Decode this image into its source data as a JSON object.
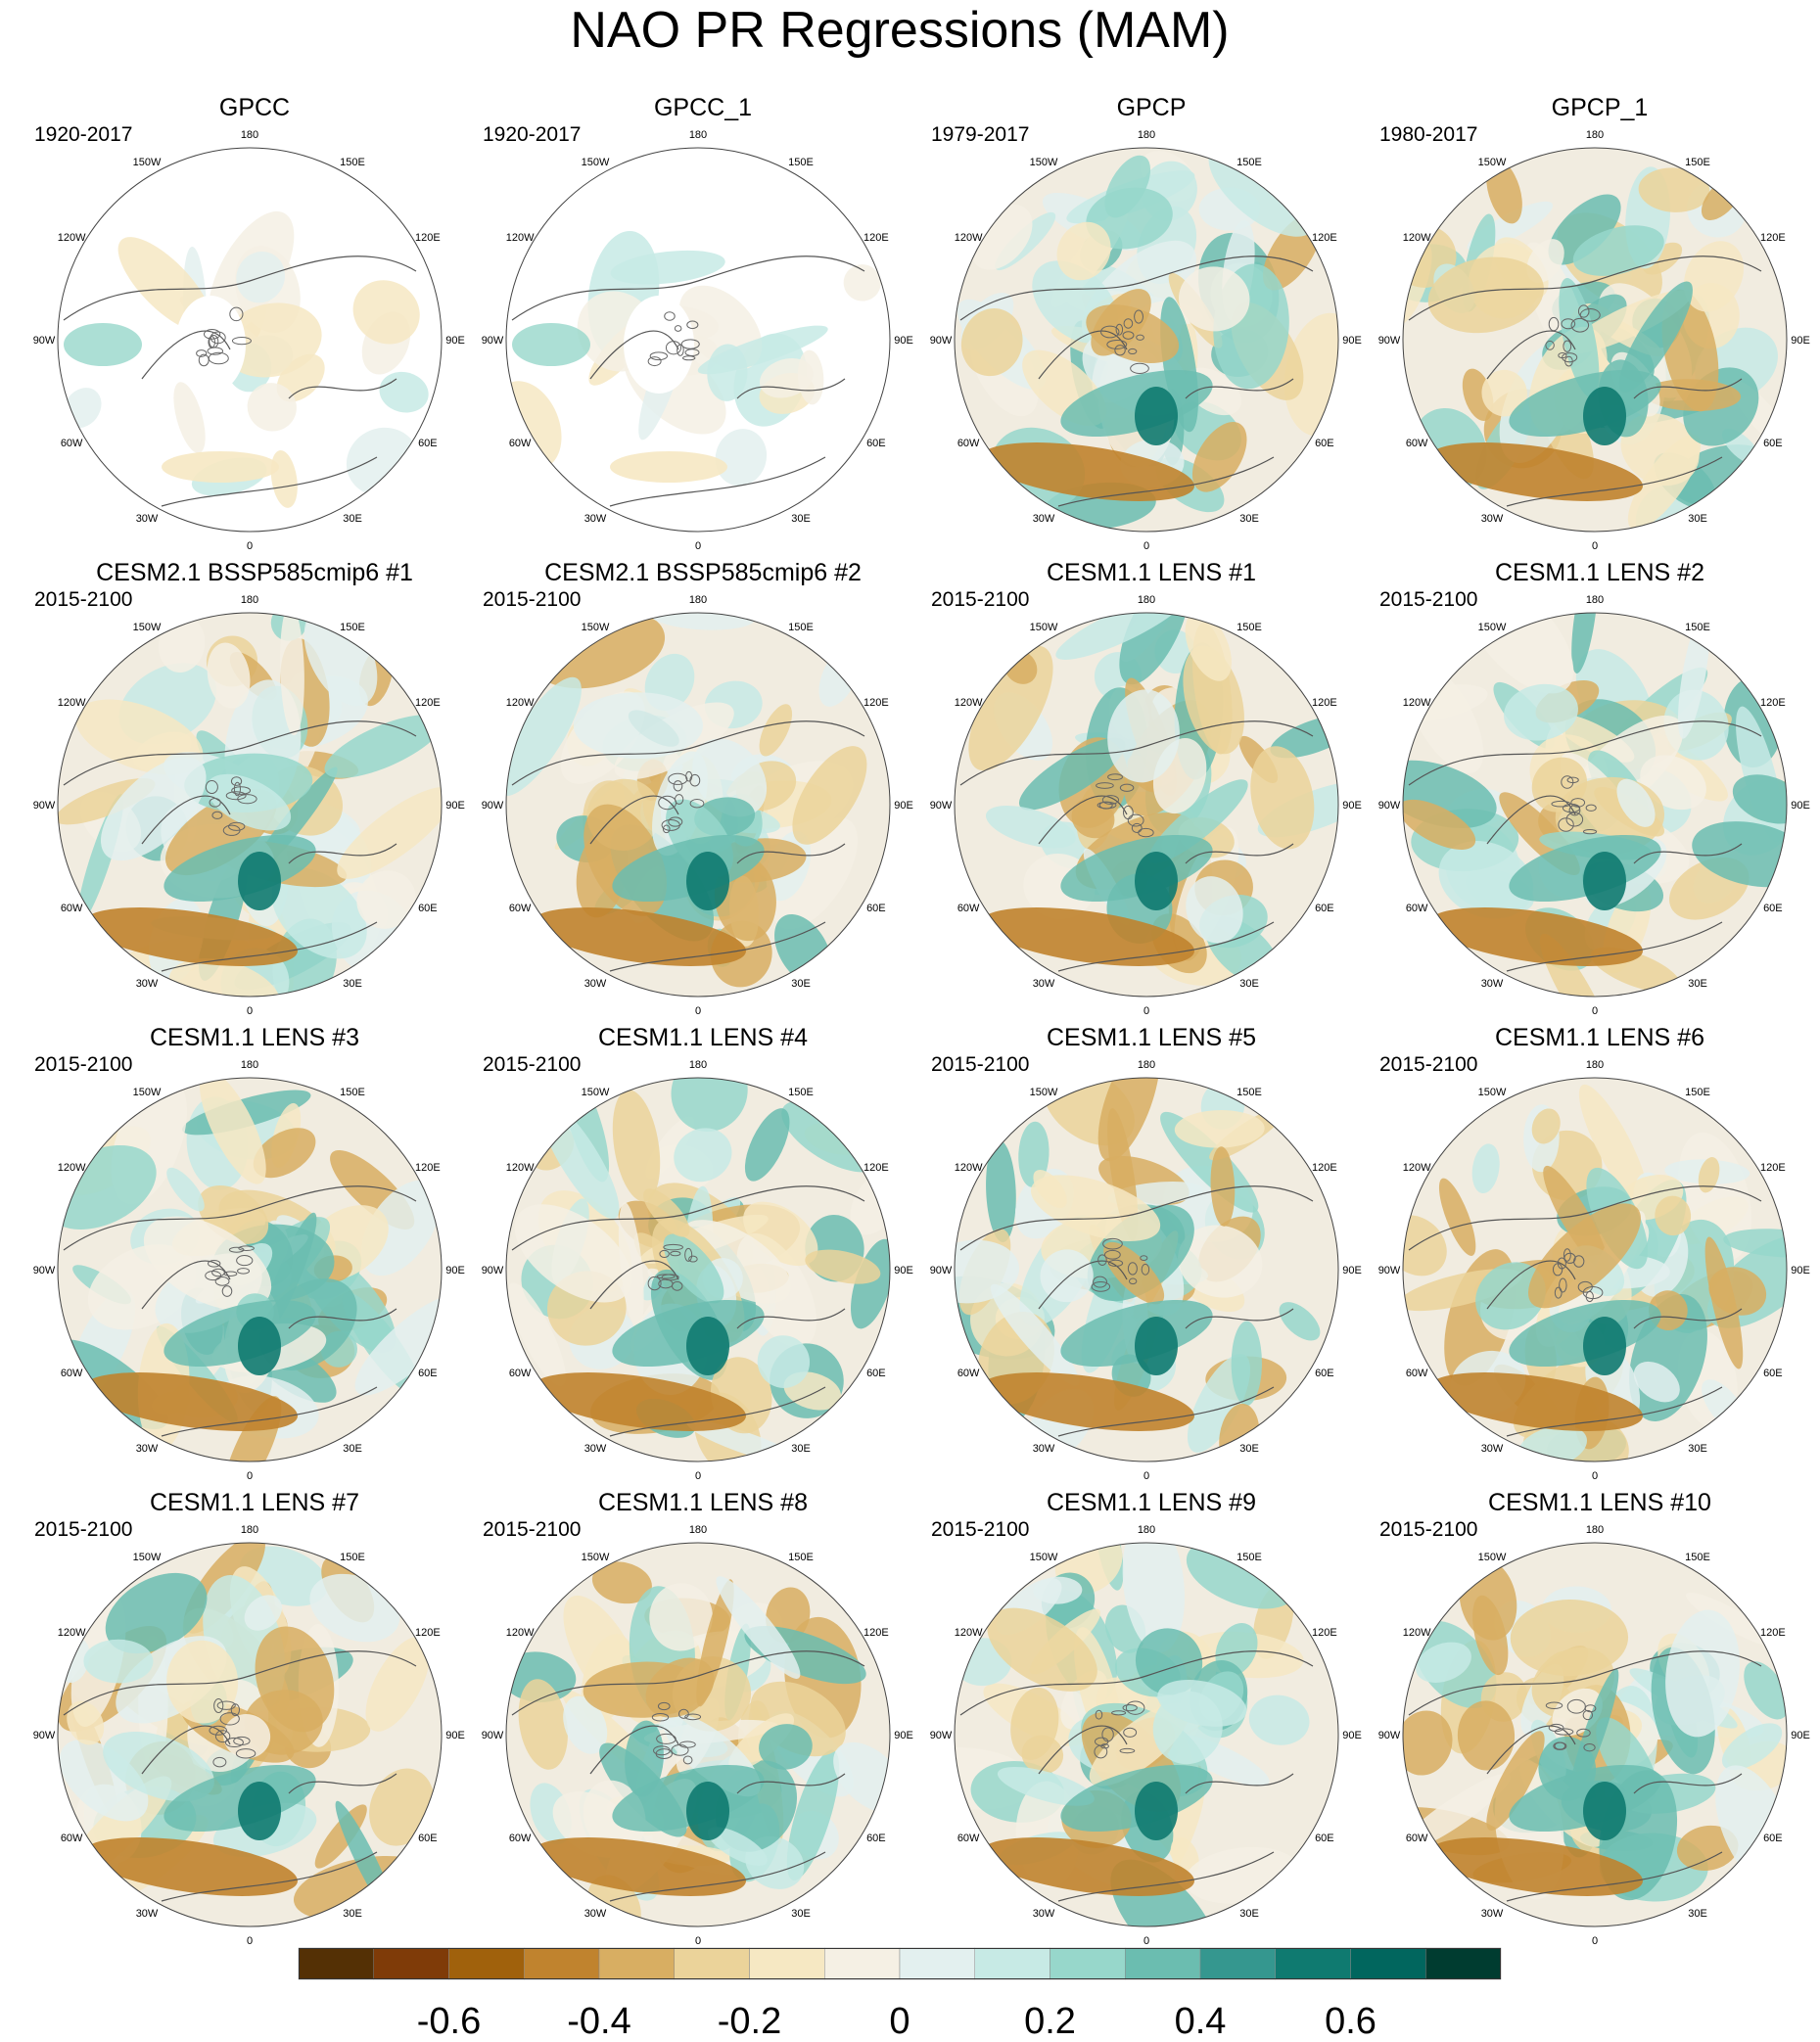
{
  "title": "NAO PR Regressions (MAM)",
  "lon_labels": [
    "180",
    "150E",
    "120E",
    "90E",
    "60E",
    "30E",
    "0",
    "30W",
    "60W",
    "90W",
    "120W",
    "150W"
  ],
  "panels": [
    {
      "title": "GPCC",
      "period": "1920-2017",
      "style": "obs_masked",
      "seed": 3
    },
    {
      "title": "GPCC_1",
      "period": "1920-2017",
      "style": "obs_masked",
      "seed": 7
    },
    {
      "title": "GPCP",
      "period": "1979-2017",
      "style": "obs_full",
      "seed": 11
    },
    {
      "title": "GPCP_1",
      "period": "1980-2017",
      "style": "obs_full",
      "seed": 13
    },
    {
      "title": "CESM2.1 BSSP585cmip6 #1",
      "period": "2015-2100",
      "style": "model",
      "seed": 17
    },
    {
      "title": "CESM2.1 BSSP585cmip6 #2",
      "period": "2015-2100",
      "style": "model",
      "seed": 19
    },
    {
      "title": "CESM1.1 LENS #1",
      "period": "2015-2100",
      "style": "model",
      "seed": 23
    },
    {
      "title": "CESM1.1 LENS #2",
      "period": "2015-2100",
      "style": "model",
      "seed": 29
    },
    {
      "title": "CESM1.1 LENS #3",
      "period": "2015-2100",
      "style": "model",
      "seed": 31
    },
    {
      "title": "CESM1.1 LENS #4",
      "period": "2015-2100",
      "style": "model",
      "seed": 37
    },
    {
      "title": "CESM1.1 LENS #5",
      "period": "2015-2100",
      "style": "model",
      "seed": 41
    },
    {
      "title": "CESM1.1 LENS #6",
      "period": "2015-2100",
      "style": "model",
      "seed": 43
    },
    {
      "title": "CESM1.1 LENS #7",
      "period": "2015-2100",
      "style": "model",
      "seed": 47
    },
    {
      "title": "CESM1.1 LENS #8",
      "period": "2015-2100",
      "style": "model",
      "seed": 53
    },
    {
      "title": "CESM1.1 LENS #9",
      "period": "2015-2100",
      "style": "model",
      "seed": 59
    },
    {
      "title": "CESM1.1 LENS #10",
      "period": "2015-2100",
      "style": "model",
      "seed": 61
    }
  ],
  "colorbar": {
    "colors": [
      "#543005",
      "#7f3b08",
      "#a0610c",
      "#c0832e",
      "#d8ae62",
      "#ebd39a",
      "#f6e8c3",
      "#f5f0e4",
      "#e3f0ef",
      "#c7eae5",
      "#97d7cb",
      "#6bbdb0",
      "#35978f",
      "#0f7a70",
      "#01665e",
      "#003c30"
    ],
    "tick_labels": [
      "-0.6",
      "-0.4",
      "-0.2",
      "0",
      "0.2",
      "0.4",
      "0.6"
    ],
    "tick_values": [
      -0.6,
      -0.4,
      -0.2,
      0,
      0.2,
      0.4,
      0.6
    ],
    "range": [
      -0.8,
      0.8
    ]
  }
}
